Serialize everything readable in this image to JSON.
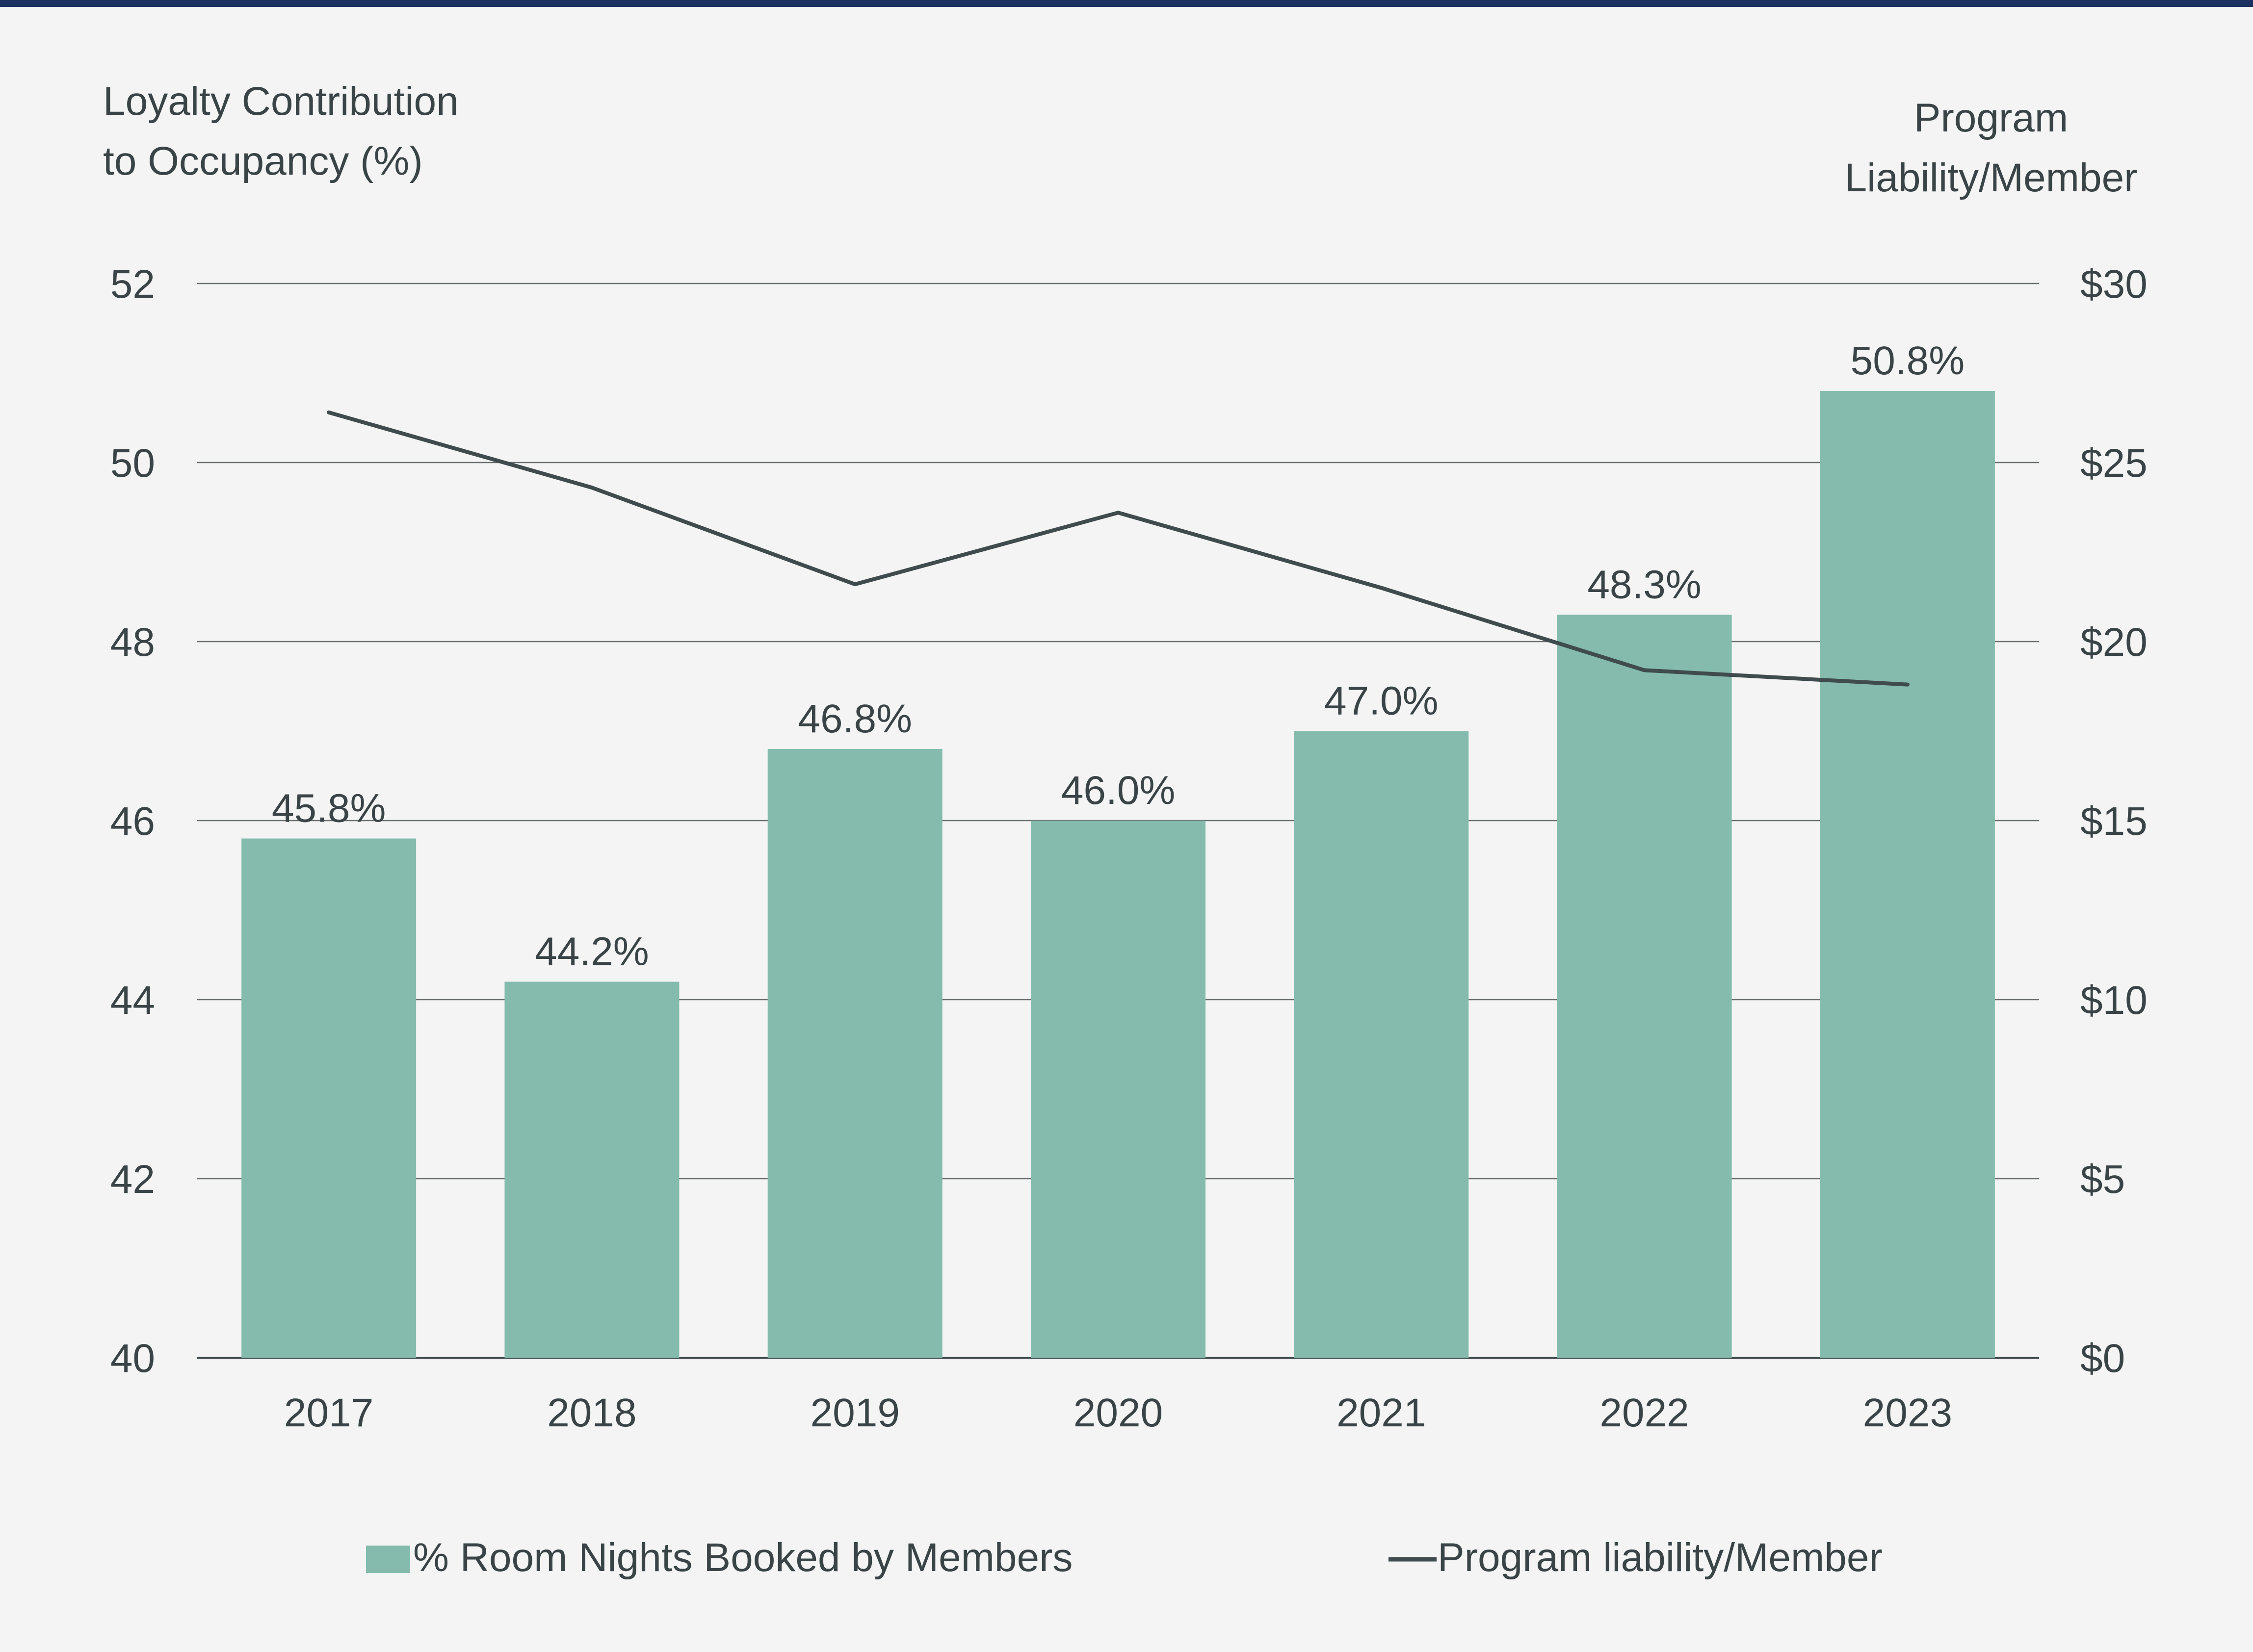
{
  "colors": {
    "background": "#f3f4f3",
    "top_rule": "#1e3163",
    "bar": "#84bbad",
    "line": "#3f4b4c",
    "grid": "#6b6e6e",
    "text": "#3a4446"
  },
  "chart_data": {
    "type": "bar",
    "categories": [
      "2017",
      "2018",
      "2019",
      "2020",
      "2021",
      "2022",
      "2023"
    ],
    "series": [
      {
        "name": "% Room Nights Booked by Members",
        "kind": "bar",
        "axis": "left",
        "values": [
          45.8,
          44.2,
          46.8,
          46.0,
          47.0,
          48.3,
          50.8
        ],
        "data_labels": [
          "45.8%",
          "44.2%",
          "46.8%",
          "46.0%",
          "47.0%",
          "48.3%",
          "50.8%"
        ]
      },
      {
        "name": "Program liability/Member",
        "kind": "line",
        "axis": "right",
        "values": [
          26.4,
          24.3,
          21.6,
          23.6,
          21.5,
          19.2,
          18.8
        ]
      }
    ],
    "left_axis": {
      "title_lines": [
        "Loyalty Contribution",
        "to Occupancy (%)"
      ],
      "range": [
        40,
        52
      ],
      "ticks": [
        40,
        42,
        44,
        46,
        48,
        50,
        52
      ],
      "tick_labels": [
        "40",
        "42",
        "44",
        "46",
        "48",
        "50",
        "52"
      ]
    },
    "right_axis": {
      "title_lines": [
        "Program",
        "Liability/Member"
      ],
      "range": [
        0,
        30
      ],
      "ticks": [
        0,
        5,
        10,
        15,
        20,
        25,
        30
      ],
      "tick_labels": [
        "$0",
        "$5",
        "$10",
        "$15",
        "$20",
        "$25",
        "$30"
      ]
    },
    "grid": true,
    "legend": {
      "placement": "bottom",
      "items": [
        {
          "label": "% Room Nights Booked by Members",
          "symbol": "bar"
        },
        {
          "label": "Program liability/Member",
          "symbol": "line"
        }
      ]
    }
  }
}
